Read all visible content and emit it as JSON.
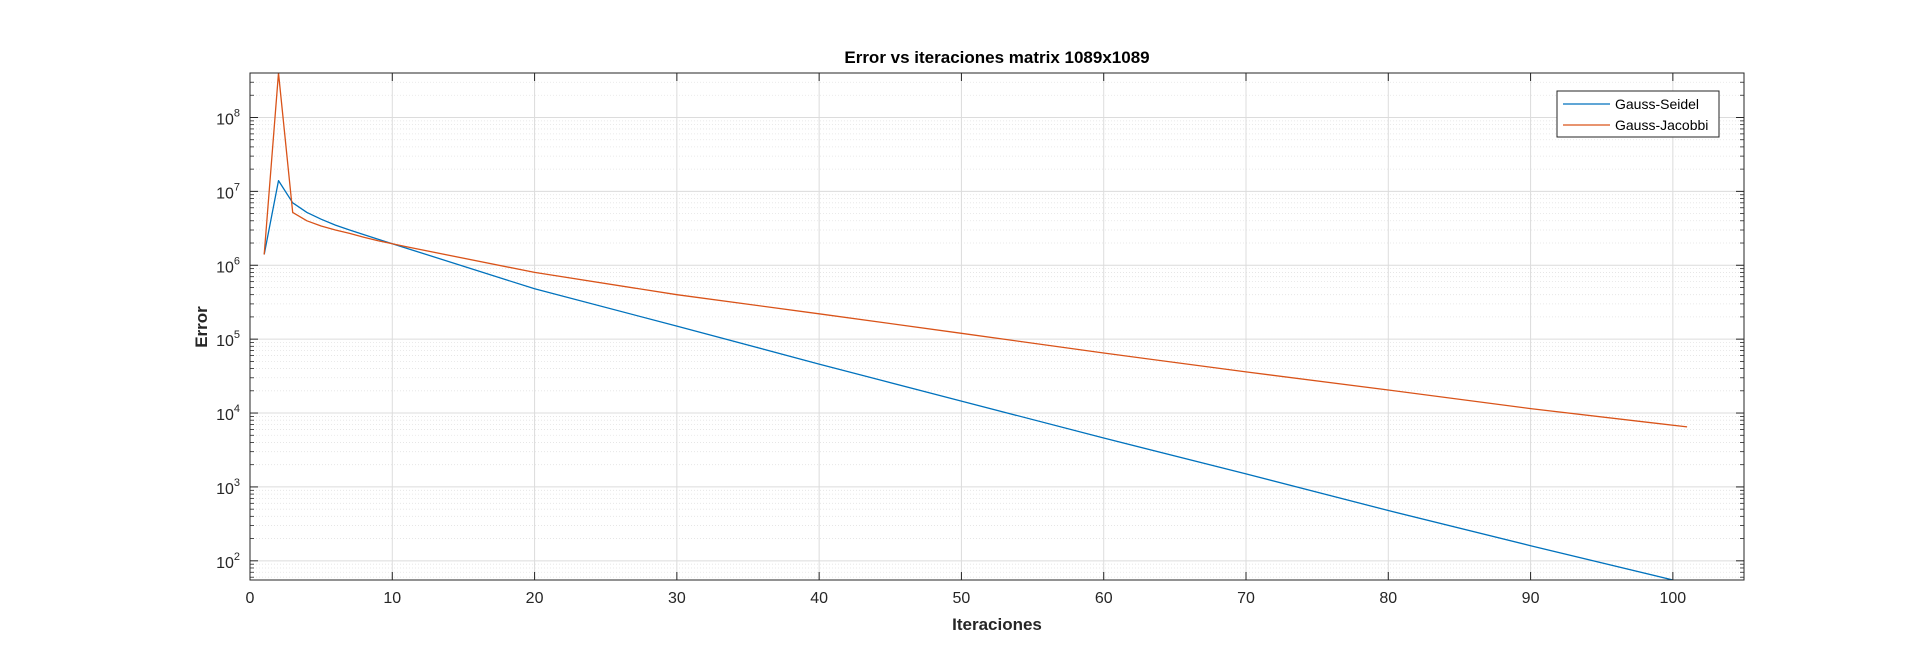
{
  "chart_data": {
    "type": "line",
    "title": "Error vs iteraciones matrix 1089x1089",
    "xlabel": "Iteraciones",
    "ylabel": "Error",
    "xlim": [
      0,
      105
    ],
    "ylim": [
      55,
      400000000
    ],
    "yscale": "log",
    "xticks": [
      0,
      10,
      20,
      30,
      40,
      50,
      60,
      70,
      80,
      90,
      100
    ],
    "xtick_labels": [
      "0",
      "10",
      "20",
      "30",
      "40",
      "50",
      "60",
      "70",
      "80",
      "90",
      "100"
    ],
    "yticks": [
      100,
      1000,
      10000,
      100000,
      1000000,
      10000000,
      100000000
    ],
    "ytick_labels": [
      {
        "base": "10",
        "exp": "2"
      },
      {
        "base": "10",
        "exp": "3"
      },
      {
        "base": "10",
        "exp": "4"
      },
      {
        "base": "10",
        "exp": "5"
      },
      {
        "base": "10",
        "exp": "6"
      },
      {
        "base": "10",
        "exp": "7"
      },
      {
        "base": "10",
        "exp": "8"
      }
    ],
    "grid": true,
    "minor_grid": true,
    "legend_position": "top-right",
    "series": [
      {
        "name": "Gauss-Seidel",
        "color": "#0072BD",
        "points": [
          [
            1,
            1400000
          ],
          [
            2,
            14000000
          ],
          [
            3,
            7000000
          ],
          [
            4,
            5200000
          ],
          [
            5,
            4200000
          ],
          [
            6,
            3500000
          ],
          [
            7,
            3000000
          ],
          [
            8,
            2600000
          ],
          [
            9,
            2250000
          ],
          [
            10,
            1950000
          ],
          [
            11,
            1700000
          ],
          [
            20,
            480000
          ],
          [
            30,
            150000
          ],
          [
            40,
            46000
          ],
          [
            50,
            14500
          ],
          [
            60,
            4600
          ],
          [
            70,
            1500
          ],
          [
            80,
            480
          ],
          [
            90,
            160
          ],
          [
            100,
            55
          ],
          [
            101,
            48
          ]
        ]
      },
      {
        "name": "Gauss-Jacobbi",
        "color": "#D95319",
        "points": [
          [
            1,
            1400000
          ],
          [
            2,
            400000000
          ],
          [
            3,
            5200000
          ],
          [
            4,
            4000000
          ],
          [
            5,
            3400000
          ],
          [
            6,
            3000000
          ],
          [
            7,
            2700000
          ],
          [
            8,
            2400000
          ],
          [
            9,
            2150000
          ],
          [
            10,
            1950000
          ],
          [
            11,
            1780000
          ],
          [
            20,
            800000
          ],
          [
            30,
            400000
          ],
          [
            40,
            220000
          ],
          [
            50,
            120000
          ],
          [
            60,
            65000
          ],
          [
            70,
            36000
          ],
          [
            80,
            20500
          ],
          [
            90,
            11500
          ],
          [
            101,
            6500
          ]
        ]
      }
    ]
  }
}
